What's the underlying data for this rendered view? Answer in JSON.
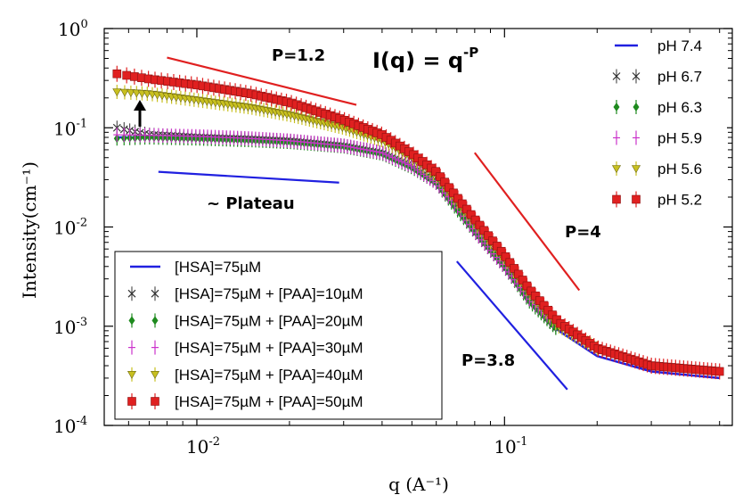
{
  "chart_data": {
    "type": "scatter",
    "xlabel": "q (A⁻¹)",
    "ylabel": "Intensity(cm⁻¹)",
    "x_scale": "log",
    "y_scale": "log",
    "xlim": [
      0.005,
      0.55
    ],
    "ylim": [
      0.0001,
      1
    ],
    "x_ticks": [
      {
        "value": 0.01,
        "base": "10",
        "exp": "-2"
      },
      {
        "value": 0.1,
        "base": "10",
        "exp": "-1"
      }
    ],
    "y_ticks": [
      {
        "value": 1,
        "base": "10",
        "exp": "0"
      },
      {
        "value": 0.1,
        "base": "10",
        "exp": "-1"
      },
      {
        "value": 0.01,
        "base": "10",
        "exp": "-2"
      },
      {
        "value": 0.001,
        "base": "10",
        "exp": "-3"
      },
      {
        "value": 0.0001,
        "base": "10",
        "exp": "-4"
      }
    ],
    "series": [
      {
        "name": "pH 7.4",
        "legend2": "[HSA]=75µM",
        "color": "#2020e0",
        "marker": "line",
        "x": [
          0.0055,
          0.007,
          0.01,
          0.015,
          0.02,
          0.03,
          0.04,
          0.05,
          0.06,
          0.07,
          0.08,
          0.1,
          0.12,
          0.15,
          0.2,
          0.3,
          0.5
        ],
        "y": [
          0.08,
          0.08,
          0.078,
          0.075,
          0.072,
          0.065,
          0.055,
          0.04,
          0.028,
          0.015,
          0.009,
          0.004,
          0.0018,
          0.0009,
          0.0005,
          0.00035,
          0.0003
        ]
      },
      {
        "name": "pH 6.7",
        "legend2": "[HSA]=75µM + [PAA]=10µM",
        "color": "#333333",
        "marker": "x",
        "x": [
          0.0055,
          0.007,
          0.01,
          0.015,
          0.02,
          0.03,
          0.04,
          0.05,
          0.06,
          0.07,
          0.08,
          0.1,
          0.12,
          0.15
        ],
        "y": [
          0.1,
          0.085,
          0.08,
          0.077,
          0.074,
          0.066,
          0.056,
          0.041,
          0.028,
          0.016,
          0.009,
          0.004,
          0.0019,
          0.0009
        ]
      },
      {
        "name": "pH 6.3",
        "legend2": "[HSA]=75µM + [PAA]=20µM",
        "color": "#1e8a1e",
        "marker": "diamond",
        "x": [
          0.0055,
          0.007,
          0.01,
          0.015,
          0.02,
          0.03,
          0.04,
          0.05,
          0.06,
          0.07,
          0.08,
          0.1,
          0.12,
          0.15
        ],
        "y": [
          0.078,
          0.08,
          0.078,
          0.075,
          0.072,
          0.065,
          0.055,
          0.04,
          0.028,
          0.015,
          0.009,
          0.004,
          0.0018,
          0.0009
        ]
      },
      {
        "name": "pH 5.9",
        "legend2": "[HSA]=75µM + [PAA]=30µM",
        "color": "#cc33cc",
        "marker": "plus",
        "x": [
          0.0055,
          0.007,
          0.01,
          0.015,
          0.02,
          0.03,
          0.04,
          0.05,
          0.06,
          0.07,
          0.08,
          0.1,
          0.12,
          0.15
        ],
        "y": [
          0.085,
          0.084,
          0.082,
          0.078,
          0.074,
          0.066,
          0.056,
          0.041,
          0.028,
          0.016,
          0.009,
          0.004,
          0.0019,
          0.001
        ]
      },
      {
        "name": "pH 5.6",
        "legend2": "[HSA]=75µM + [PAA]=40µM",
        "color": "#c8c020",
        "marker": "triangle",
        "x": [
          0.0055,
          0.007,
          0.01,
          0.015,
          0.02,
          0.03,
          0.04,
          0.05,
          0.06,
          0.07,
          0.08,
          0.1,
          0.12,
          0.15,
          0.2
        ],
        "y": [
          0.23,
          0.22,
          0.19,
          0.16,
          0.135,
          0.1,
          0.075,
          0.05,
          0.033,
          0.018,
          0.011,
          0.0048,
          0.0022,
          0.001,
          0.0006
        ]
      },
      {
        "name": "pH 5.2",
        "legend2": "[HSA]=75µM + [PAA]=50µM",
        "color": "#e02020",
        "marker": "square",
        "x": [
          0.0055,
          0.007,
          0.01,
          0.015,
          0.02,
          0.03,
          0.04,
          0.05,
          0.06,
          0.07,
          0.08,
          0.1,
          0.12,
          0.15,
          0.2,
          0.3,
          0.5
        ],
        "y": [
          0.35,
          0.31,
          0.27,
          0.22,
          0.18,
          0.12,
          0.085,
          0.055,
          0.036,
          0.02,
          0.012,
          0.0052,
          0.0024,
          0.0011,
          0.0006,
          0.0004,
          0.00035
        ]
      }
    ],
    "guides": [
      {
        "label": "P=1.2",
        "color": "#e02020",
        "x": [
          0.008,
          0.033
        ],
        "y": [
          0.51,
          0.17
        ]
      },
      {
        "label": "~ Plateau",
        "color": "#2020e0",
        "x": [
          0.0075,
          0.029
        ],
        "y": [
          0.036,
          0.028
        ]
      },
      {
        "label": "P=4",
        "color": "#e02020",
        "x": [
          0.08,
          0.175
        ],
        "y": [
          0.056,
          0.0023
        ]
      },
      {
        "label": "P=3.8",
        "color": "#2020e0",
        "x": [
          0.07,
          0.16
        ],
        "y": [
          0.0045,
          0.00023
        ]
      }
    ],
    "formula": {
      "main": "I(q) = q",
      "exp": "-P"
    },
    "legend_position": "top-right",
    "legend2_position": "lower-left"
  }
}
